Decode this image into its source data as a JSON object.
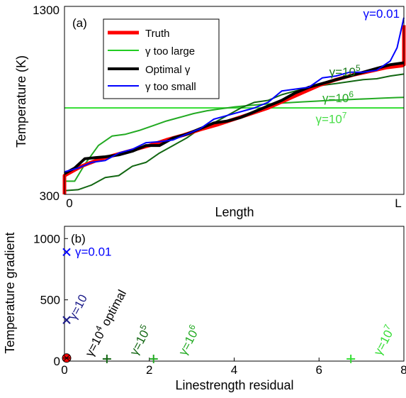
{
  "chart_data": [
    {
      "type": "line",
      "panel_label": "(a)",
      "xlabel": "Length",
      "ylabel": "Temperature (K)",
      "x_tick_labels": [
        "0",
        "L"
      ],
      "y_tick_labels": [
        "300",
        "1300"
      ],
      "ylim": [
        300,
        1300
      ],
      "xlim": [
        0,
        1
      ],
      "grid": false,
      "legend_position": "top-left",
      "legend": [
        {
          "label": "Truth",
          "color": "#ff0000"
        },
        {
          "label": "γ too large",
          "color": "#22cc22"
        },
        {
          "label": "Optimal γ",
          "color": "#000000"
        },
        {
          "label": "γ too small",
          "color": "#0000ff"
        }
      ],
      "annotations": [
        {
          "base": "γ=0.01",
          "sup": "",
          "color": "#0000ff",
          "x": 0.88,
          "y": 1240
        },
        {
          "base": "γ=10",
          "sup": "5",
          "color": "#1a7a1a",
          "x": 0.78,
          "y": 930
        },
        {
          "base": "γ=10",
          "sup": "6",
          "color": "#22aa22",
          "x": 0.76,
          "y": 790
        },
        {
          "base": "γ=10",
          "sup": "7",
          "color": "#44dd44",
          "x": 0.74,
          "y": 680
        }
      ],
      "series": [
        {
          "key": "gamma_1e7",
          "color": "#33dd33",
          "width": 2,
          "x": [
            0,
            1
          ],
          "y": [
            760,
            760
          ]
        },
        {
          "key": "gamma_1e6",
          "color": "#22aa22",
          "width": 2,
          "x": [
            0,
            0.03,
            0.06,
            0.1,
            0.14,
            0.18,
            0.22,
            0.26,
            0.3,
            0.34,
            0.38,
            0.42,
            0.46,
            0.5,
            0.54,
            0.58,
            0.62,
            0.66,
            0.7,
            0.74,
            0.78,
            0.82,
            0.86,
            0.9,
            0.94,
            0.98,
            1.0
          ],
          "y": [
            370,
            370,
            460,
            560,
            610,
            620,
            640,
            665,
            690,
            710,
            730,
            745,
            755,
            765,
            772,
            778,
            783,
            788,
            792,
            796,
            800,
            803,
            806,
            809,
            812,
            815,
            816
          ]
        },
        {
          "key": "gamma_1e5",
          "color": "#116611",
          "width": 2,
          "x": [
            0,
            0.04,
            0.08,
            0.12,
            0.16,
            0.2,
            0.24,
            0.28,
            0.32,
            0.36,
            0.4,
            0.44,
            0.48,
            0.52,
            0.56,
            0.6,
            0.64,
            0.68,
            0.72,
            0.76,
            0.8,
            0.84,
            0.88,
            0.92,
            0.96,
            1.0
          ],
          "y": [
            320,
            325,
            350,
            390,
            400,
            450,
            470,
            520,
            560,
            600,
            650,
            680,
            720,
            760,
            790,
            800,
            830,
            850,
            870,
            880,
            890,
            900,
            910,
            915,
            930,
            940
          ]
        },
        {
          "key": "truth",
          "color": "#ff0000",
          "width": 5,
          "x": [
            0,
            0.0,
            0.05,
            0.1,
            0.15,
            0.2,
            0.25,
            0.3,
            0.35,
            0.4,
            0.45,
            0.5,
            0.55,
            0.6,
            0.65,
            0.7,
            0.75,
            0.8,
            0.85,
            0.9,
            0.95,
            0.995,
            1.0,
            1.0
          ],
          "y": [
            300,
            400,
            450,
            485,
            510,
            535,
            560,
            590,
            615,
            645,
            670,
            700,
            730,
            760,
            800,
            840,
            880,
            910,
            935,
            955,
            975,
            985,
            990,
            1200
          ]
        },
        {
          "key": "optimal",
          "color": "#000000",
          "width": 4,
          "x": [
            0,
            0.03,
            0.06,
            0.09,
            0.12,
            0.16,
            0.2,
            0.24,
            0.28,
            0.32,
            0.36,
            0.4,
            0.44,
            0.48,
            0.52,
            0.56,
            0.6,
            0.64,
            0.68,
            0.72,
            0.76,
            0.8,
            0.84,
            0.88,
            0.92,
            0.96,
            1.0
          ],
          "y": [
            410,
            440,
            490,
            495,
            500,
            510,
            530,
            560,
            560,
            600,
            620,
            650,
            680,
            690,
            710,
            740,
            770,
            800,
            840,
            870,
            890,
            910,
            930,
            950,
            970,
            990,
            1000
          ]
        },
        {
          "key": "gamma_001",
          "color": "#0000ff",
          "width": 2,
          "x": [
            0,
            0.04,
            0.08,
            0.12,
            0.16,
            0.2,
            0.24,
            0.28,
            0.32,
            0.36,
            0.4,
            0.44,
            0.48,
            0.52,
            0.56,
            0.6,
            0.64,
            0.68,
            0.72,
            0.76,
            0.8,
            0.84,
            0.88,
            0.92,
            0.96,
            0.98,
            1.0
          ],
          "y": [
            420,
            440,
            470,
            480,
            520,
            540,
            575,
            580,
            590,
            620,
            650,
            700,
            720,
            740,
            760,
            790,
            850,
            860,
            870,
            920,
            930,
            950,
            950,
            960,
            1010,
            1080,
            1240
          ]
        }
      ]
    },
    {
      "type": "scatter",
      "panel_label": "(b)",
      "xlabel": "Linestrength residual",
      "ylabel": "Temperature gradient",
      "xlim": [
        0,
        8
      ],
      "ylim": [
        0,
        1100
      ],
      "x_ticks": [
        0,
        2,
        4,
        6,
        8
      ],
      "y_ticks": [
        0,
        500,
        1000
      ],
      "grid": false,
      "points": [
        {
          "x": 0.05,
          "y": 890,
          "marker": "x",
          "color": "#0000ff",
          "base": "γ=0.01",
          "sup": "",
          "rotate": 0,
          "lx": 0.25,
          "ly": 860
        },
        {
          "x": 0.05,
          "y": 335,
          "marker": "x",
          "color": "#1a1a88",
          "base": "γ=10",
          "sup": "",
          "rotate": -62,
          "lx": 0.25,
          "ly": 330
        },
        {
          "x": 0.05,
          "y": 25,
          "marker": "o",
          "color": "#ff0000",
          "base": "γ=10",
          "sup": "4",
          "rotate": -62,
          "lx": 0.65,
          "ly": 30,
          "extra": " optimal",
          "label_color": "#000000"
        },
        {
          "x": 1.0,
          "y": 18,
          "marker": "+",
          "color": "#116611",
          "base": "γ=10",
          "sup": "5",
          "rotate": -62,
          "lx": 1.7,
          "ly": 40
        },
        {
          "x": 2.1,
          "y": 18,
          "marker": "+",
          "color": "#22aa22",
          "base": "γ=10",
          "sup": "6",
          "rotate": -62,
          "lx": 2.85,
          "ly": 40
        },
        {
          "x": 6.75,
          "y": 18,
          "marker": "+",
          "color": "#33dd33",
          "base": "γ=10",
          "sup": "7",
          "rotate": -62,
          "lx": 7.45,
          "ly": 40
        }
      ]
    }
  ]
}
